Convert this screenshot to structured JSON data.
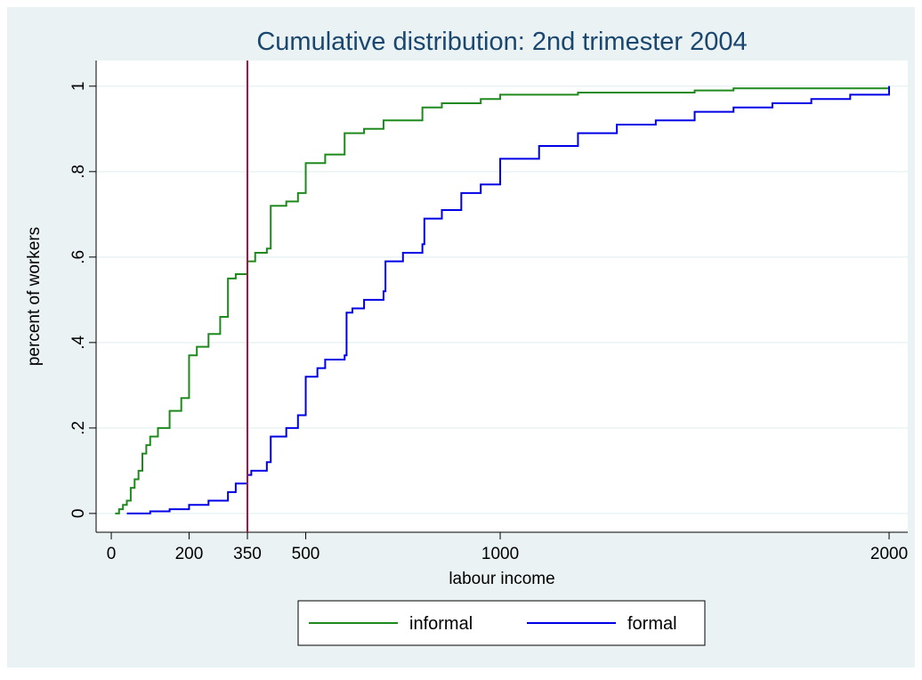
{
  "chart_data": {
    "type": "line",
    "step": true,
    "title": "Cumulative distribution: 2nd trimester 2004",
    "xlabel": "labour income",
    "ylabel": "percent of workers",
    "xlim": [
      -39,
      2048
    ],
    "ylim": [
      -0.044,
      1.06
    ],
    "xticks": [
      0,
      200,
      350,
      500,
      1000,
      2000
    ],
    "yticks": [
      0,
      {
        "value": 0.2,
        "label": ".2"
      },
      {
        "value": 0.4,
        "label": ".4"
      },
      {
        "value": 0.6,
        "label": ".6"
      },
      {
        "value": 0.8,
        "label": ".8"
      },
      1
    ],
    "grid": true,
    "legend": "bottom",
    "vline": {
      "value": 350,
      "color": "#b0103a"
    },
    "series": [
      {
        "name": "informal",
        "color": "#1e8a1e",
        "x": [
          10,
          20,
          30,
          40,
          50,
          60,
          70,
          80,
          90,
          100,
          120,
          150,
          180,
          200,
          220,
          250,
          280,
          300,
          320,
          350,
          370,
          400,
          410,
          450,
          480,
          500,
          550,
          600,
          650,
          700,
          800,
          850,
          950,
          1000,
          1200,
          1500,
          1600,
          2000
        ],
        "values": [
          0,
          0.01,
          0.02,
          0.03,
          0.06,
          0.08,
          0.1,
          0.14,
          0.16,
          0.18,
          0.2,
          0.24,
          0.27,
          0.37,
          0.39,
          0.42,
          0.46,
          0.55,
          0.56,
          0.59,
          0.61,
          0.62,
          0.72,
          0.73,
          0.75,
          0.82,
          0.84,
          0.89,
          0.9,
          0.92,
          0.95,
          0.96,
          0.97,
          0.98,
          0.985,
          0.99,
          0.995,
          1
        ]
      },
      {
        "name": "formal",
        "color": "#0000e6",
        "x": [
          40,
          100,
          150,
          200,
          250,
          300,
          320,
          350,
          360,
          400,
          410,
          450,
          480,
          500,
          530,
          550,
          600,
          605,
          620,
          650,
          700,
          705,
          750,
          800,
          805,
          850,
          900,
          950,
          1000,
          1100,
          1200,
          1300,
          1400,
          1500,
          1600,
          1700,
          1800,
          1900,
          2000
        ],
        "values": [
          0,
          0.005,
          0.01,
          0.02,
          0.03,
          0.05,
          0.07,
          0.09,
          0.1,
          0.12,
          0.18,
          0.2,
          0.23,
          0.32,
          0.34,
          0.36,
          0.37,
          0.47,
          0.48,
          0.5,
          0.52,
          0.59,
          0.61,
          0.63,
          0.69,
          0.71,
          0.75,
          0.77,
          0.83,
          0.86,
          0.89,
          0.91,
          0.92,
          0.94,
          0.95,
          0.96,
          0.97,
          0.98,
          1
        ]
      }
    ]
  }
}
